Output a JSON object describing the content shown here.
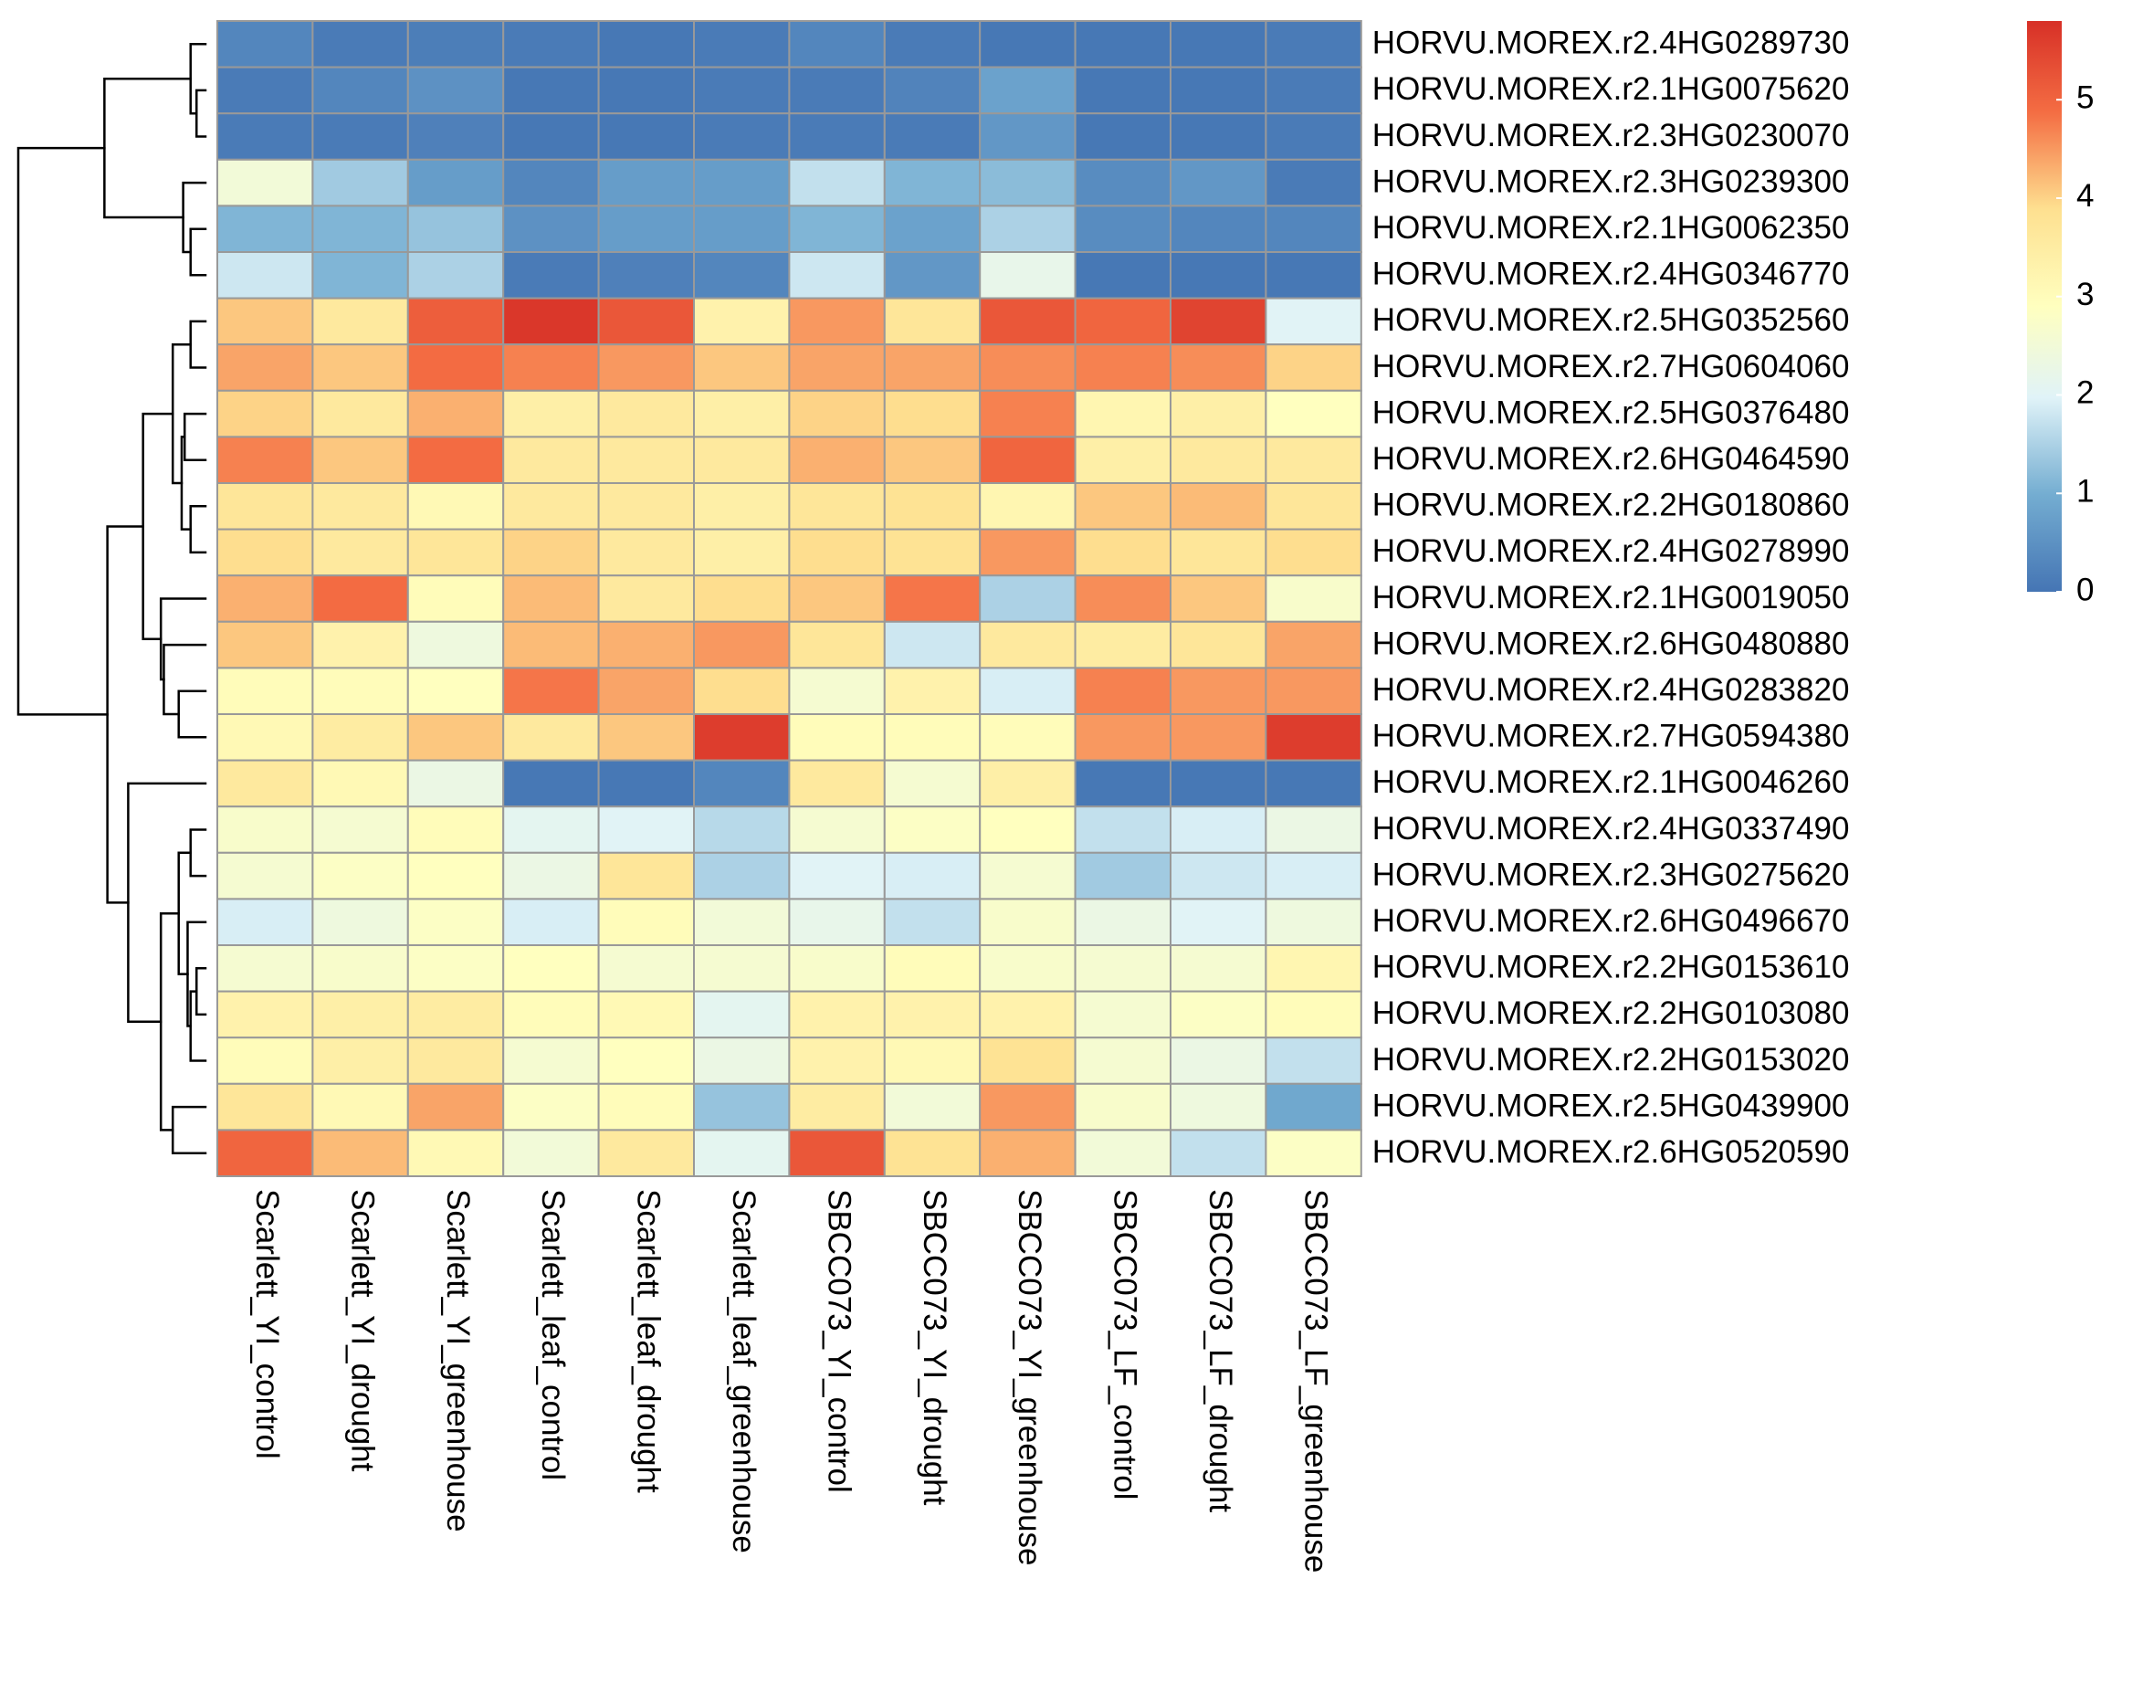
{
  "chart_data": {
    "type": "heatmap",
    "title": "",
    "xlabel": "",
    "ylabel": "",
    "columns": [
      "Scarlett_YI_control",
      "Scarlett_YI_drought",
      "Scarlett_YI_greenhouse",
      "Scarlett_leaf_control",
      "Scarlett_leaf_drought",
      "Scarlett_leaf_greenhouse",
      "SBCC073_YI_control",
      "SBCC073_YI_drought",
      "SBCC073_YI_greenhouse",
      "SBCC073_LF_control",
      "SBCC073_LF_drought",
      "SBCC073_LF_greenhouse"
    ],
    "rows": [
      "HORVU.MOREX.r2.4HG0289730",
      "HORVU.MOREX.r2.1HG0075620",
      "HORVU.MOREX.r2.3HG0230070",
      "HORVU.MOREX.r2.3HG0239300",
      "HORVU.MOREX.r2.1HG0062350",
      "HORVU.MOREX.r2.4HG0346770",
      "HORVU.MOREX.r2.5HG0352560",
      "HORVU.MOREX.r2.7HG0604060",
      "HORVU.MOREX.r2.5HG0376480",
      "HORVU.MOREX.r2.6HG0464590",
      "HORVU.MOREX.r2.2HG0180860",
      "HORVU.MOREX.r2.4HG0278990",
      "HORVU.MOREX.r2.1HG0019050",
      "HORVU.MOREX.r2.6HG0480880",
      "HORVU.MOREX.r2.4HG0283820",
      "HORVU.MOREX.r2.7HG0594380",
      "HORVU.MOREX.r2.1HG0046260",
      "HORVU.MOREX.r2.4HG0337490",
      "HORVU.MOREX.r2.3HG0275620",
      "HORVU.MOREX.r2.6HG0496670",
      "HORVU.MOREX.r2.2HG0153610",
      "HORVU.MOREX.r2.2HG0103080",
      "HORVU.MOREX.r2.2HG0153020",
      "HORVU.MOREX.r2.5HG0439900",
      "HORVU.MOREX.r2.6HG0520590"
    ],
    "values": [
      [
        0.3,
        0.1,
        0.15,
        0.1,
        0.05,
        0.1,
        0.3,
        0.1,
        0.05,
        0.05,
        0.05,
        0.1
      ],
      [
        0.1,
        0.3,
        0.5,
        0.05,
        0.05,
        0.1,
        0.1,
        0.25,
        0.8,
        0.05,
        0.05,
        0.1
      ],
      [
        0.1,
        0.1,
        0.2,
        0.05,
        0.05,
        0.1,
        0.1,
        0.1,
        0.6,
        0.05,
        0.05,
        0.1
      ],
      [
        2.5,
        1.4,
        0.7,
        0.3,
        0.7,
        0.7,
        1.7,
        1.1,
        1.2,
        0.4,
        0.6,
        0.1
      ],
      [
        1.1,
        1.1,
        1.3,
        0.5,
        0.7,
        0.7,
        1.1,
        0.8,
        1.5,
        0.4,
        0.3,
        0.3
      ],
      [
        1.8,
        1.1,
        1.5,
        0.1,
        0.2,
        0.3,
        1.8,
        0.6,
        2.2,
        0.05,
        0.05,
        0.05
      ],
      [
        4.1,
        3.6,
        5.1,
        5.7,
        5.2,
        3.3,
        4.5,
        3.7,
        5.2,
        5.0,
        5.5,
        2.0
      ],
      [
        4.4,
        4.1,
        4.9,
        4.7,
        4.5,
        4.1,
        4.4,
        4.4,
        4.6,
        4.7,
        4.6,
        4.0
      ],
      [
        4.0,
        3.6,
        4.3,
        3.4,
        3.6,
        3.4,
        4.0,
        3.9,
        4.7,
        3.2,
        3.4,
        2.9
      ],
      [
        4.7,
        4.1,
        4.9,
        3.6,
        3.6,
        3.6,
        4.3,
        4.1,
        5.0,
        3.4,
        3.6,
        3.6
      ],
      [
        3.7,
        3.6,
        3.1,
        3.6,
        3.6,
        3.4,
        3.7,
        3.8,
        3.2,
        4.1,
        4.2,
        3.7
      ],
      [
        3.9,
        3.6,
        3.7,
        4.0,
        3.6,
        3.4,
        3.9,
        3.8,
        4.5,
        3.9,
        3.7,
        3.9
      ],
      [
        4.3,
        4.9,
        3.0,
        4.2,
        3.6,
        3.9,
        4.1,
        4.8,
        1.5,
        4.6,
        4.1,
        2.7
      ],
      [
        4.1,
        3.3,
        2.4,
        4.2,
        4.3,
        4.5,
        3.7,
        1.8,
        3.6,
        3.5,
        3.7,
        4.4
      ],
      [
        3.0,
        3.0,
        2.9,
        4.8,
        4.4,
        3.9,
        2.6,
        3.3,
        1.9,
        4.7,
        4.5,
        4.5
      ],
      [
        3.1,
        3.5,
        4.1,
        3.6,
        4.1,
        5.6,
        3.0,
        3.0,
        3.0,
        4.5,
        4.5,
        5.6
      ],
      [
        3.6,
        3.1,
        2.3,
        0.05,
        0.05,
        0.3,
        3.6,
        2.6,
        3.4,
        0.05,
        0.05,
        0.05
      ],
      [
        2.7,
        2.6,
        3.0,
        2.1,
        2.0,
        1.6,
        2.6,
        2.8,
        2.9,
        1.7,
        1.9,
        2.3
      ],
      [
        2.6,
        2.8,
        2.9,
        2.3,
        3.7,
        1.5,
        2.0,
        1.9,
        2.6,
        1.4,
        1.8,
        1.9
      ],
      [
        1.9,
        2.4,
        2.8,
        1.9,
        3.0,
        2.5,
        2.2,
        1.7,
        2.7,
        2.3,
        2.0,
        2.4
      ],
      [
        2.6,
        2.7,
        2.8,
        2.9,
        2.6,
        2.6,
        2.7,
        3.0,
        2.7,
        2.6,
        2.6,
        3.2
      ],
      [
        3.3,
        3.4,
        3.5,
        3.0,
        3.1,
        2.1,
        3.3,
        3.3,
        3.3,
        2.6,
        2.8,
        3.0
      ],
      [
        3.0,
        3.4,
        3.6,
        2.6,
        2.9,
        2.3,
        3.3,
        3.1,
        3.8,
        2.6,
        2.3,
        1.7
      ],
      [
        3.7,
        3.1,
        4.4,
        2.8,
        3.0,
        1.3,
        3.5,
        2.5,
        4.5,
        2.7,
        2.4,
        0.9
      ],
      [
        5.0,
        4.2,
        3.1,
        2.5,
        3.6,
        2.1,
        5.2,
        3.8,
        4.3,
        2.5,
        1.7,
        2.8
      ]
    ],
    "colorbar": {
      "min": 0,
      "max": 5.8,
      "ticks": [
        0,
        1,
        2,
        3,
        4,
        5
      ],
      "tick_labels": [
        "0",
        "1",
        "2",
        "3",
        "4",
        "5"
      ]
    },
    "colors": {
      "low": "#4575b4",
      "mid": "#ffffbf",
      "high": "#d73027",
      "cell_border": "#999999",
      "dendrogram": "#000000"
    },
    "dendrogram": {
      "leaf_order": [
        1,
        2,
        3,
        4,
        5,
        6,
        7,
        8,
        9,
        10,
        11,
        12,
        13,
        14,
        15,
        16,
        17,
        18,
        19,
        20,
        21,
        22,
        23,
        24,
        25
      ],
      "merges": [
        [
          -2,
          -3,
          0.3
        ],
        [
          -1,
          1,
          0.5
        ],
        [
          -5,
          -6,
          0.5
        ],
        [
          -4,
          3,
          0.75
        ],
        [
          2,
          4,
          3.4
        ],
        [
          -7,
          -8,
          0.5
        ],
        [
          -9,
          -10,
          0.7
        ],
        [
          -11,
          -12,
          0.5
        ],
        [
          7,
          8,
          0.8
        ],
        [
          6,
          9,
          1.1
        ],
        [
          -15,
          -16,
          0.9
        ],
        [
          -14,
          11,
          1.4
        ],
        [
          -13,
          12,
          1.5
        ],
        [
          10,
          13,
          2.1
        ],
        [
          -18,
          -19,
          0.5
        ],
        [
          -21,
          -22,
          0.3
        ],
        [
          -23,
          16,
          0.5
        ],
        [
          -20,
          17,
          0.6
        ],
        [
          15,
          18,
          0.9
        ],
        [
          -24,
          -25,
          1.1
        ],
        [
          19,
          20,
          1.5
        ],
        [
          -17,
          21,
          2.6
        ],
        [
          14,
          22,
          3.3
        ],
        [
          5,
          23,
          6.3
        ]
      ]
    }
  }
}
